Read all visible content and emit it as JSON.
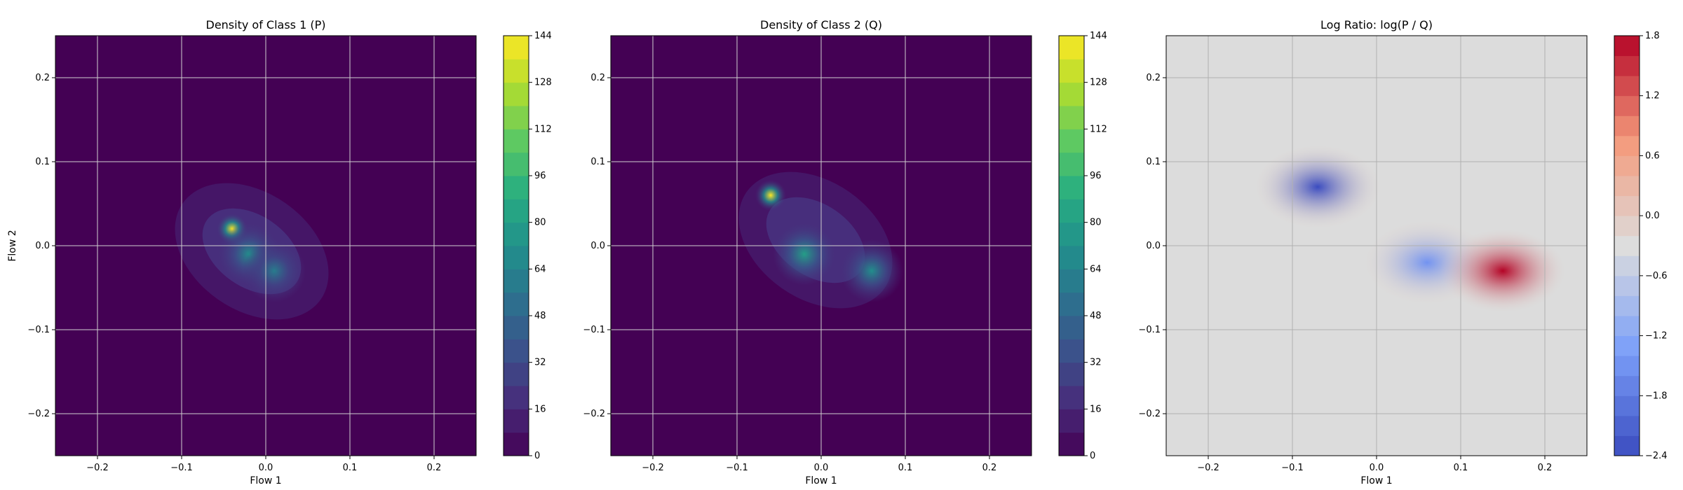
{
  "chart_data": [
    {
      "type": "heatmap",
      "title": "Density of Class 1 (P)",
      "xlabel": "Flow 1",
      "ylabel": "Flow 2",
      "xlim": [
        -0.25,
        0.25
      ],
      "ylim": [
        -0.25,
        0.25
      ],
      "xticks": [
        -0.2,
        -0.1,
        0.0,
        0.1,
        0.2
      ],
      "yticks": [
        -0.2,
        -0.1,
        0.0,
        0.1,
        0.2
      ],
      "xtick_labels": [
        "−0.2",
        "−0.1",
        "0.0",
        "0.1",
        "0.2"
      ],
      "ytick_labels": [
        "−0.2",
        "−0.1",
        "0.0",
        "0.1",
        "0.2"
      ],
      "grid": true,
      "colormap": "viridis",
      "colorbar": {
        "min": 0,
        "max": 144,
        "ticks": [
          0,
          16,
          32,
          48,
          64,
          80,
          96,
          112,
          128,
          144
        ],
        "tick_labels": [
          "0",
          "16",
          "32",
          "48",
          "64",
          "80",
          "96",
          "112",
          "128",
          "144"
        ]
      },
      "peaks": [
        {
          "x": -0.04,
          "y": 0.02,
          "value": 144
        },
        {
          "x": -0.02,
          "y": -0.01,
          "value": 70
        },
        {
          "x": 0.01,
          "y": -0.03,
          "value": 60
        }
      ]
    },
    {
      "type": "heatmap",
      "title": "Density of Class 2 (Q)",
      "xlabel": "Flow 1",
      "ylabel": "",
      "xlim": [
        -0.25,
        0.25
      ],
      "ylim": [
        -0.25,
        0.25
      ],
      "xticks": [
        -0.2,
        -0.1,
        0.0,
        0.1,
        0.2
      ],
      "yticks": [
        -0.2,
        -0.1,
        0.0,
        0.1,
        0.2
      ],
      "xtick_labels": [
        "−0.2",
        "−0.1",
        "0.0",
        "0.1",
        "0.2"
      ],
      "ytick_labels": [
        "−0.2",
        "−0.1",
        "0.0",
        "0.1",
        "0.2"
      ],
      "grid": true,
      "colormap": "viridis",
      "colorbar": {
        "min": 0,
        "max": 144,
        "ticks": [
          0,
          16,
          32,
          48,
          64,
          80,
          96,
          112,
          128,
          144
        ],
        "tick_labels": [
          "0",
          "16",
          "32",
          "48",
          "64",
          "80",
          "96",
          "112",
          "128",
          "144"
        ]
      },
      "peaks": [
        {
          "x": -0.06,
          "y": 0.06,
          "value": 144
        },
        {
          "x": -0.02,
          "y": -0.01,
          "value": 80
        },
        {
          "x": 0.06,
          "y": -0.03,
          "value": 70
        }
      ]
    },
    {
      "type": "heatmap",
      "title": "Log Ratio: log(P / Q)",
      "xlabel": "Flow 1",
      "ylabel": "",
      "xlim": [
        -0.25,
        0.25
      ],
      "ylim": [
        -0.25,
        0.25
      ],
      "xticks": [
        -0.2,
        -0.1,
        0.0,
        0.1,
        0.2
      ],
      "yticks": [
        -0.2,
        -0.1,
        0.0,
        0.1,
        0.2
      ],
      "xtick_labels": [
        "−0.2",
        "−0.1",
        "0.0",
        "0.1",
        "0.2"
      ],
      "ytick_labels": [
        "−0.2",
        "−0.1",
        "0.0",
        "0.1",
        "0.2"
      ],
      "grid": true,
      "colormap": "coolwarm",
      "colorbar": {
        "min": -2.4,
        "max": 1.8,
        "ticks": [
          -2.4,
          -1.8,
          -1.2,
          -0.6,
          0.0,
          0.6,
          1.2,
          1.8
        ],
        "tick_labels": [
          "−2.4",
          "−1.8",
          "−1.2",
          "−0.6",
          "0.0",
          "0.6",
          "1.2",
          "1.8"
        ]
      },
      "features": [
        {
          "x": -0.07,
          "y": 0.07,
          "value": -2.4
        },
        {
          "x": 0.06,
          "y": -0.02,
          "value": -1.5
        },
        {
          "x": 0.15,
          "y": -0.03,
          "value": 1.8
        }
      ]
    }
  ]
}
